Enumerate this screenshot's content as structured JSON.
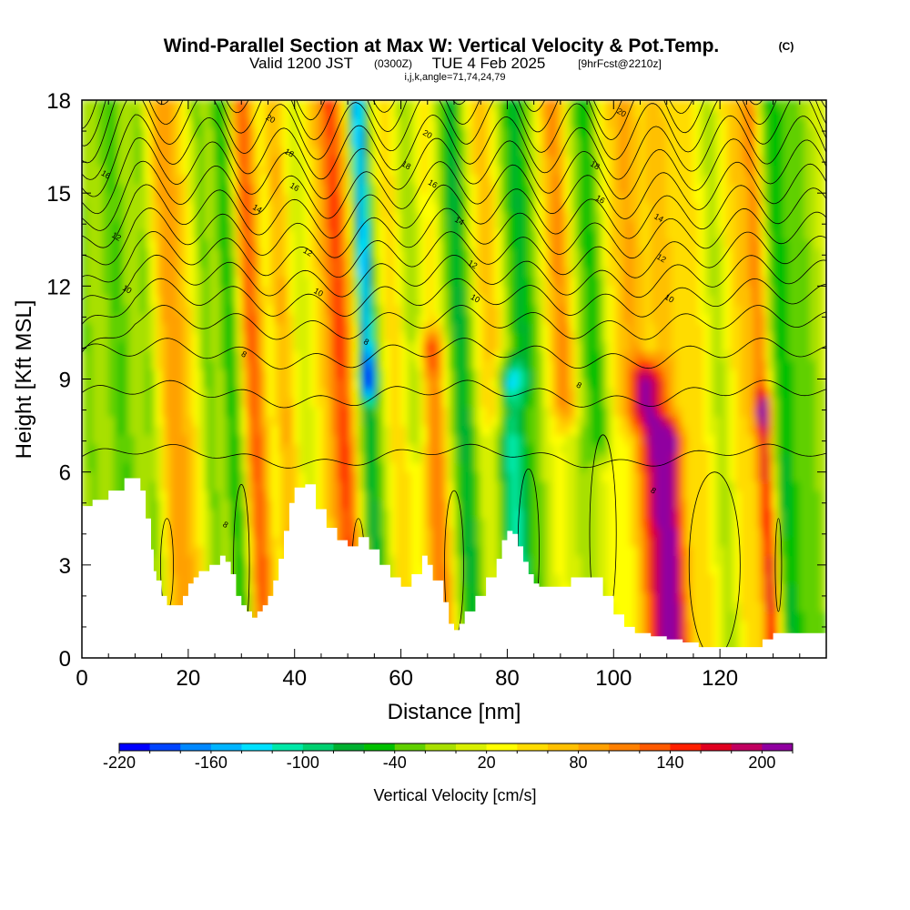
{
  "header": {
    "title": "Wind-Parallel Section at Max W: Vertical Velocity & Pot.Temp.",
    "copyright": "(C)",
    "valid_prefix": "Valid 1200 JST",
    "valid_utc": "(0300Z)",
    "valid_date": "TUE 4 Feb 2025",
    "forecast": "[9hrFcst@2210z]",
    "indices": "i,j,k,angle=71,74,24,79"
  },
  "chart_data": {
    "type": "heatmap",
    "title": "Wind-Parallel Section at Max W: Vertical Velocity & Pot.Temp.",
    "xlabel": "Distance [nm]",
    "ylabel": "Height [Kft MSL]",
    "xlim": [
      0,
      140
    ],
    "ylim": [
      0,
      18
    ],
    "x_ticks": [
      "0",
      "20",
      "40",
      "60",
      "80",
      "100",
      "120"
    ],
    "x_tick_values": [
      0,
      20,
      40,
      60,
      80,
      100,
      120
    ],
    "y_ticks": [
      "0",
      "3",
      "6",
      "9",
      "12",
      "15",
      "18"
    ],
    "y_tick_values": [
      0,
      3,
      6,
      9,
      12,
      15,
      18
    ],
    "colorbar": {
      "label": "Vertical Velocity [cm/s]",
      "tick_labels": [
        "-220",
        "-160",
        "-100",
        "-40",
        "20",
        "80",
        "140",
        "200"
      ],
      "tick_values": [
        -220,
        -160,
        -100,
        -40,
        20,
        80,
        140,
        200
      ],
      "min": -220,
      "max": 220,
      "step": 20,
      "colors": [
        "#0000ff",
        "#0044ff",
        "#0088ff",
        "#00b4ff",
        "#00e0ff",
        "#00e8a8",
        "#00d070",
        "#00b030",
        "#00c000",
        "#60d000",
        "#a8e000",
        "#d8f000",
        "#ffff00",
        "#ffdc00",
        "#ffc000",
        "#ffa000",
        "#ff8000",
        "#ff5a00",
        "#ff2000",
        "#e00020",
        "#c00060",
        "#9000a0"
      ]
    },
    "terrain_kft": [
      [
        0,
        4.9
      ],
      [
        2,
        5.1
      ],
      [
        5,
        5.4
      ],
      [
        8,
        5.8
      ],
      [
        10,
        5.8
      ],
      [
        11,
        5.4
      ],
      [
        12,
        4.5
      ],
      [
        13,
        3.5
      ],
      [
        13.5,
        2.8
      ],
      [
        14,
        2.5
      ],
      [
        15,
        2.0
      ],
      [
        16,
        1.7
      ],
      [
        18,
        1.7
      ],
      [
        19,
        2.0
      ],
      [
        20,
        2.4
      ],
      [
        21,
        2.6
      ],
      [
        22,
        2.8
      ],
      [
        24,
        3.0
      ],
      [
        26,
        3.3
      ],
      [
        27,
        3.1
      ],
      [
        28,
        2.7
      ],
      [
        29,
        2.0
      ],
      [
        30,
        1.7
      ],
      [
        31,
        1.5
      ],
      [
        32,
        1.3
      ],
      [
        33,
        1.5
      ],
      [
        34,
        1.7
      ],
      [
        35,
        2.0
      ],
      [
        36,
        2.5
      ],
      [
        37,
        3.2
      ],
      [
        38,
        4.1
      ],
      [
        39,
        5.0
      ],
      [
        40,
        5.5
      ],
      [
        42,
        5.6
      ],
      [
        44,
        4.8
      ],
      [
        46,
        4.2
      ],
      [
        48,
        3.8
      ],
      [
        50,
        3.6
      ],
      [
        52,
        3.9
      ],
      [
        54,
        3.5
      ],
      [
        56,
        3.0
      ],
      [
        58,
        2.6
      ],
      [
        60,
        2.3
      ],
      [
        62,
        2.7
      ],
      [
        64,
        3.3
      ],
      [
        65,
        3.0
      ],
      [
        66,
        2.5
      ],
      [
        68,
        1.8
      ],
      [
        69,
        1.1
      ],
      [
        70,
        0.9
      ],
      [
        71,
        1.1
      ],
      [
        72,
        1.5
      ],
      [
        74,
        2.0
      ],
      [
        76,
        2.6
      ],
      [
        78,
        3.2
      ],
      [
        79,
        3.8
      ],
      [
        80,
        4.1
      ],
      [
        81,
        4.0
      ],
      [
        82,
        3.6
      ],
      [
        83,
        3.1
      ],
      [
        84,
        2.7
      ],
      [
        85,
        2.4
      ],
      [
        86,
        2.3
      ],
      [
        90,
        2.3
      ],
      [
        92,
        2.6
      ],
      [
        96,
        2.6
      ],
      [
        98,
        2.0
      ],
      [
        100,
        1.4
      ],
      [
        102,
        1.0
      ],
      [
        104,
        0.8
      ],
      [
        107,
        0.7
      ],
      [
        110,
        0.6
      ],
      [
        113,
        0.5
      ],
      [
        116,
        0.35
      ],
      [
        120,
        0.35
      ],
      [
        126,
        0.35
      ],
      [
        128,
        0.6
      ],
      [
        130,
        0.8
      ],
      [
        132,
        0.8
      ],
      [
        139,
        0.8
      ]
    ],
    "contour_labels": [
      {
        "text": "16",
        "x": 4.5,
        "y": 15.6
      },
      {
        "text": "12",
        "x": 6.5,
        "y": 13.6
      },
      {
        "text": "10",
        "x": 8.5,
        "y": 11.9
      },
      {
        "text": "20",
        "x": 35.5,
        "y": 17.4
      },
      {
        "text": "18",
        "x": 39,
        "y": 16.3
      },
      {
        "text": "16",
        "x": 40,
        "y": 15.2
      },
      {
        "text": "14",
        "x": 33,
        "y": 14.5
      },
      {
        "text": "12",
        "x": 42.5,
        "y": 13.1
      },
      {
        "text": "10",
        "x": 44.5,
        "y": 11.8
      },
      {
        "text": "8",
        "x": 30.5,
        "y": 9.8
      },
      {
        "text": "8",
        "x": 27,
        "y": 4.3
      },
      {
        "text": "8",
        "x": 53.5,
        "y": 10.2
      },
      {
        "text": "18",
        "x": 61,
        "y": 15.9
      },
      {
        "text": "20",
        "x": 65,
        "y": 16.9
      },
      {
        "text": "16",
        "x": 66,
        "y": 15.3
      },
      {
        "text": "14",
        "x": 71,
        "y": 14.1
      },
      {
        "text": "12",
        "x": 73.5,
        "y": 12.7
      },
      {
        "text": "10",
        "x": 74,
        "y": 11.6
      },
      {
        "text": "20",
        "x": 101.5,
        "y": 17.6
      },
      {
        "text": "18",
        "x": 96.5,
        "y": 15.9
      },
      {
        "text": "16",
        "x": 97.5,
        "y": 14.8
      },
      {
        "text": "14",
        "x": 108.5,
        "y": 14.2
      },
      {
        "text": "12",
        "x": 109,
        "y": 12.9
      },
      {
        "text": "10",
        "x": 110.5,
        "y": 11.6
      },
      {
        "text": "8",
        "x": 93.5,
        "y": 8.8
      },
      {
        "text": "8",
        "x": 107.5,
        "y": 5.4
      }
    ]
  }
}
